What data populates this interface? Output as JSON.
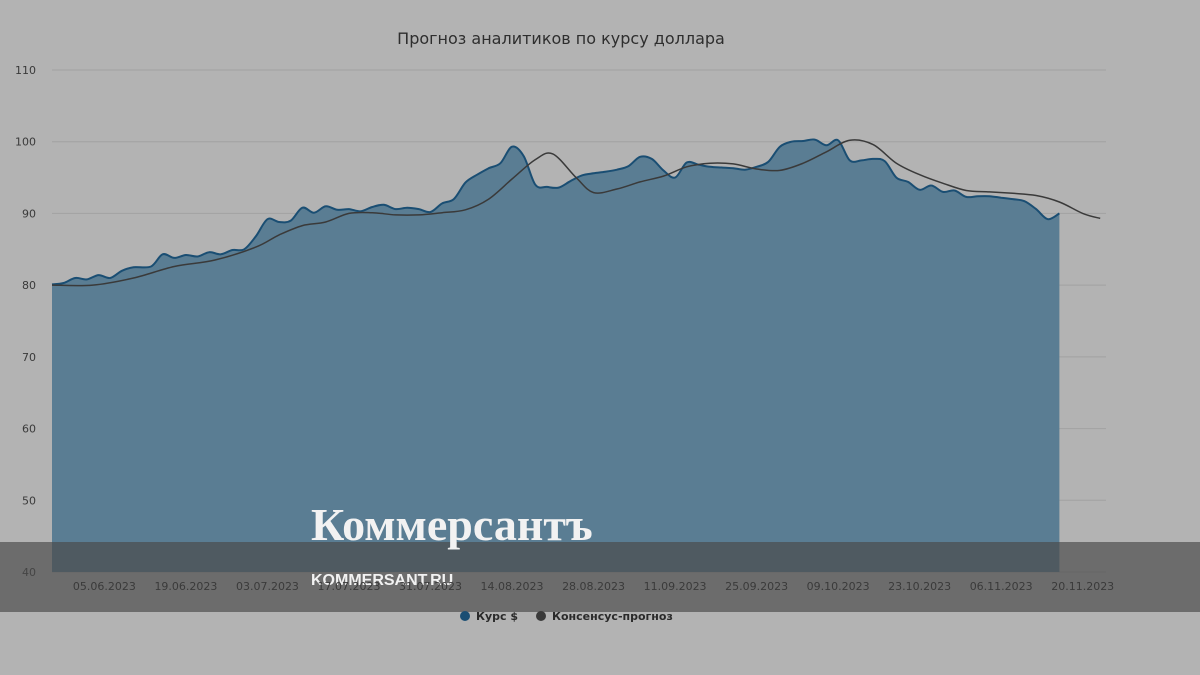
{
  "chart_data": {
    "type": "area",
    "title": "Прогноз аналитиков по курсу доллара",
    "xlabel": "",
    "ylabel": "",
    "ylim": [
      40,
      110
    ],
    "yticks": [
      40,
      50,
      60,
      70,
      80,
      90,
      100,
      110
    ],
    "x_start": "2023-05-27",
    "x_end": "2023-11-24",
    "xticks": [
      "05.06.2023",
      "19.06.2023",
      "03.07.2023",
      "17.07.2023",
      "31.07.2023",
      "14.08.2023",
      "28.08.2023",
      "11.09.2023",
      "25.09.2023",
      "09.10.2023",
      "23.10.2023",
      "06.11.2023",
      "20.11.2023"
    ],
    "grid": true,
    "legend_position": "bottom-center",
    "series": [
      {
        "name": "Курс $",
        "kind": "area",
        "color": "#1a4e73",
        "points": [
          [
            "2023-05-27",
            80.1
          ],
          [
            "2023-05-29",
            80.3
          ],
          [
            "2023-05-31",
            81.0
          ],
          [
            "2023-06-02",
            80.8
          ],
          [
            "2023-06-04",
            81.4
          ],
          [
            "2023-06-06",
            81.0
          ],
          [
            "2023-06-08",
            82.0
          ],
          [
            "2023-06-10",
            82.5
          ],
          [
            "2023-06-13",
            82.6
          ],
          [
            "2023-06-15",
            84.3
          ],
          [
            "2023-06-17",
            83.8
          ],
          [
            "2023-06-19",
            84.2
          ],
          [
            "2023-06-21",
            84.0
          ],
          [
            "2023-06-23",
            84.6
          ],
          [
            "2023-06-25",
            84.3
          ],
          [
            "2023-06-27",
            84.9
          ],
          [
            "2023-06-29",
            85.0
          ],
          [
            "2023-07-01",
            86.8
          ],
          [
            "2023-07-03",
            89.2
          ],
          [
            "2023-07-05",
            88.8
          ],
          [
            "2023-07-07",
            89.0
          ],
          [
            "2023-07-09",
            90.8
          ],
          [
            "2023-07-11",
            90.1
          ],
          [
            "2023-07-13",
            91.0
          ],
          [
            "2023-07-15",
            90.5
          ],
          [
            "2023-07-17",
            90.6
          ],
          [
            "2023-07-19",
            90.3
          ],
          [
            "2023-07-21",
            90.9
          ],
          [
            "2023-07-23",
            91.2
          ],
          [
            "2023-07-25",
            90.6
          ],
          [
            "2023-07-27",
            90.8
          ],
          [
            "2023-07-29",
            90.6
          ],
          [
            "2023-07-31",
            90.2
          ],
          [
            "2023-08-02",
            91.4
          ],
          [
            "2023-08-04",
            92.0
          ],
          [
            "2023-08-06",
            94.3
          ],
          [
            "2023-08-08",
            95.4
          ],
          [
            "2023-08-10",
            96.3
          ],
          [
            "2023-08-12",
            97.0
          ],
          [
            "2023-08-14",
            99.3
          ],
          [
            "2023-08-16",
            98.0
          ],
          [
            "2023-08-18",
            94.0
          ],
          [
            "2023-08-20",
            93.7
          ],
          [
            "2023-08-22",
            93.6
          ],
          [
            "2023-08-24",
            94.5
          ],
          [
            "2023-08-26",
            95.3
          ],
          [
            "2023-08-28",
            95.6
          ],
          [
            "2023-08-30",
            95.8
          ],
          [
            "2023-09-01",
            96.1
          ],
          [
            "2023-09-03",
            96.6
          ],
          [
            "2023-09-05",
            97.9
          ],
          [
            "2023-09-07",
            97.6
          ],
          [
            "2023-09-09",
            96.0
          ],
          [
            "2023-09-11",
            95.0
          ],
          [
            "2023-09-13",
            97.1
          ],
          [
            "2023-09-15",
            96.8
          ],
          [
            "2023-09-17",
            96.5
          ],
          [
            "2023-09-19",
            96.4
          ],
          [
            "2023-09-21",
            96.3
          ],
          [
            "2023-09-23",
            96.1
          ],
          [
            "2023-09-25",
            96.5
          ],
          [
            "2023-09-27",
            97.2
          ],
          [
            "2023-09-29",
            99.3
          ],
          [
            "2023-10-01",
            100.0
          ],
          [
            "2023-10-03",
            100.1
          ],
          [
            "2023-10-05",
            100.3
          ],
          [
            "2023-10-07",
            99.5
          ],
          [
            "2023-10-09",
            100.2
          ],
          [
            "2023-10-11",
            97.4
          ],
          [
            "2023-10-13",
            97.4
          ],
          [
            "2023-10-15",
            97.6
          ],
          [
            "2023-10-17",
            97.3
          ],
          [
            "2023-10-19",
            95.0
          ],
          [
            "2023-10-21",
            94.4
          ],
          [
            "2023-10-23",
            93.3
          ],
          [
            "2023-10-25",
            93.9
          ],
          [
            "2023-10-27",
            93.0
          ],
          [
            "2023-10-29",
            93.2
          ],
          [
            "2023-10-31",
            92.3
          ],
          [
            "2023-11-02",
            92.4
          ],
          [
            "2023-11-04",
            92.4
          ],
          [
            "2023-11-06",
            92.2
          ],
          [
            "2023-11-08",
            92.0
          ],
          [
            "2023-11-10",
            91.7
          ],
          [
            "2023-11-12",
            90.6
          ],
          [
            "2023-11-14",
            89.2
          ],
          [
            "2023-11-16",
            90.0
          ]
        ]
      },
      {
        "name": "Консенсус-прогноз",
        "kind": "line",
        "color": "#3a3a3a",
        "points": [
          [
            "2023-05-27",
            80.0
          ],
          [
            "2023-06-03",
            80.0
          ],
          [
            "2023-06-10",
            81.0
          ],
          [
            "2023-06-17",
            82.6
          ],
          [
            "2023-06-24",
            83.5
          ],
          [
            "2023-07-01",
            85.3
          ],
          [
            "2023-07-05",
            87.0
          ],
          [
            "2023-07-09",
            88.3
          ],
          [
            "2023-07-13",
            88.8
          ],
          [
            "2023-07-17",
            90.0
          ],
          [
            "2023-07-21",
            90.1
          ],
          [
            "2023-07-25",
            89.8
          ],
          [
            "2023-07-29",
            89.8
          ],
          [
            "2023-08-02",
            90.1
          ],
          [
            "2023-08-06",
            90.5
          ],
          [
            "2023-08-10",
            92.0
          ],
          [
            "2023-08-14",
            94.8
          ],
          [
            "2023-08-18",
            97.5
          ],
          [
            "2023-08-21",
            98.3
          ],
          [
            "2023-08-25",
            95.0
          ],
          [
            "2023-08-28",
            92.9
          ],
          [
            "2023-09-01",
            93.4
          ],
          [
            "2023-09-05",
            94.4
          ],
          [
            "2023-09-09",
            95.2
          ],
          [
            "2023-09-13",
            96.5
          ],
          [
            "2023-09-17",
            97.0
          ],
          [
            "2023-09-21",
            96.9
          ],
          [
            "2023-09-25",
            96.2
          ],
          [
            "2023-09-29",
            96.0
          ],
          [
            "2023-10-03",
            97.0
          ],
          [
            "2023-10-07",
            98.6
          ],
          [
            "2023-10-11",
            100.2
          ],
          [
            "2023-10-15",
            99.6
          ],
          [
            "2023-10-19",
            97.0
          ],
          [
            "2023-10-23",
            95.4
          ],
          [
            "2023-10-27",
            94.2
          ],
          [
            "2023-10-31",
            93.2
          ],
          [
            "2023-11-04",
            93.0
          ],
          [
            "2023-11-08",
            92.8
          ],
          [
            "2023-11-12",
            92.5
          ],
          [
            "2023-11-16",
            91.6
          ],
          [
            "2023-11-20",
            90.0
          ],
          [
            "2023-11-23",
            89.3
          ]
        ]
      }
    ]
  },
  "watermark": {
    "brand": "Коммерсантъ",
    "url": "KOMMERSANT.RU"
  },
  "colors": {
    "background": "#b3b3b3",
    "area_fill": "#5a7d93",
    "area_stroke": "#1a4e73",
    "consensus_line": "#3a3a3a",
    "gridline": "#a2a2a2",
    "watermark_band": "#4a4a4a"
  }
}
